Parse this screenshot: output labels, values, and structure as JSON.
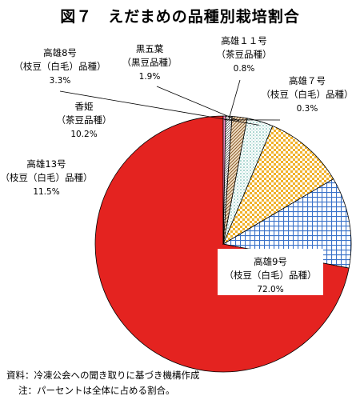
{
  "title": "図７　えだまめの品種別栽培割合",
  "chart_data": {
    "type": "pie",
    "slices": [
      {
        "name": "高雄9号",
        "type": "（枝豆（白毛）品種）",
        "value_label": "72.0%",
        "value": 72.0,
        "pattern": "solid-red"
      },
      {
        "name": "高雄13号",
        "type": "（枝豆（白毛）品種）",
        "value_label": "11.5%",
        "value": 11.5,
        "pattern": "blue-grid"
      },
      {
        "name": "香姫",
        "type": "（茶豆品種）",
        "value_label": "10.2%",
        "value": 10.2,
        "pattern": "yellow-checker"
      },
      {
        "name": "高雄8号",
        "type": "（枝豆（白毛）品種）",
        "value_label": "3.3%",
        "value": 3.3,
        "pattern": "teal-dots"
      },
      {
        "name": "黒五葉",
        "type": "（黒豆品種）",
        "value_label": "1.9%",
        "value": 1.9,
        "pattern": "brown-diagonal"
      },
      {
        "name": "高雄１１号",
        "type": "（茶豆品種）",
        "value_label": "0.8%",
        "value": 0.8,
        "pattern": "gray-diagonal"
      },
      {
        "name": "高雄７号",
        "type": "（枝豆（白毛）品種）",
        "value_label": "0.3%",
        "value": 0.3,
        "pattern": "pink-solid"
      }
    ]
  },
  "notes": {
    "source": "資料：冷凍公会への聞き取りに基づき機構作成",
    "note": "注：パーセントは全体に占める割合。"
  }
}
